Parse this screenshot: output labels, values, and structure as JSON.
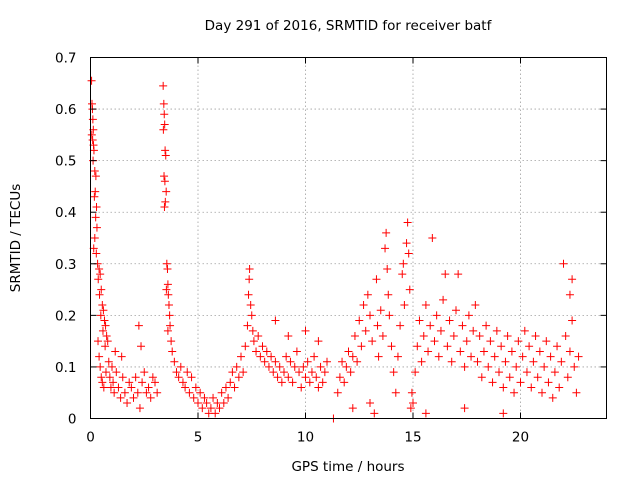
{
  "chart_data": {
    "type": "scatter",
    "title": "Day 291 of 2016, SRMTID for receiver batf",
    "xlabel": "GPS time / hours",
    "ylabel": "SRMTID / TECUs",
    "xlim": [
      0,
      24
    ],
    "ylim": [
      0,
      0.7
    ],
    "x_ticks": [
      0,
      5,
      10,
      15,
      20
    ],
    "y_ticks": [
      0,
      0.1,
      0.2,
      0.3,
      0.4,
      0.5,
      0.6,
      0.7
    ],
    "x_tick_labels": [
      "0",
      "5",
      "10",
      "15",
      "20"
    ],
    "y_tick_labels": [
      "0",
      "0.1",
      "0.2",
      "0.3",
      "0.4",
      "0.5",
      "0.6",
      "0.7"
    ],
    "grid": true,
    "marker": "+",
    "color": "#ff0000",
    "series": [
      {
        "name": "SRMTID",
        "points": [
          [
            0.05,
            0.655
          ],
          [
            0.07,
            0.61
          ],
          [
            0.09,
            0.6
          ],
          [
            0.11,
            0.58
          ],
          [
            0.13,
            0.56
          ],
          [
            0.06,
            0.55
          ],
          [
            0.1,
            0.54
          ],
          [
            0.14,
            0.53
          ],
          [
            0.16,
            0.52
          ],
          [
            0.12,
            0.5
          ],
          [
            0.2,
            0.48
          ],
          [
            0.25,
            0.47
          ],
          [
            0.22,
            0.44
          ],
          [
            0.18,
            0.43
          ],
          [
            0.28,
            0.41
          ],
          [
            0.24,
            0.39
          ],
          [
            0.3,
            0.37
          ],
          [
            0.2,
            0.35
          ],
          [
            0.15,
            0.33
          ],
          [
            0.27,
            0.32
          ],
          [
            0.33,
            0.3
          ],
          [
            0.4,
            0.29
          ],
          [
            0.45,
            0.28
          ],
          [
            0.36,
            0.27
          ],
          [
            0.5,
            0.25
          ],
          [
            0.42,
            0.24
          ],
          [
            0.55,
            0.22
          ],
          [
            0.6,
            0.21
          ],
          [
            0.48,
            0.2
          ],
          [
            0.65,
            0.19
          ],
          [
            0.7,
            0.18
          ],
          [
            0.58,
            0.17
          ],
          [
            0.75,
            0.16
          ],
          [
            0.8,
            0.15
          ],
          [
            0.68,
            0.14
          ],
          [
            0.35,
            0.15
          ],
          [
            0.4,
            0.12
          ],
          [
            0.45,
            0.1
          ],
          [
            0.5,
            0.08
          ],
          [
            0.55,
            0.07
          ],
          [
            0.62,
            0.06
          ],
          [
            0.72,
            0.09
          ],
          [
            0.85,
            0.11
          ],
          [
            0.9,
            0.08
          ],
          [
            0.95,
            0.06
          ],
          [
            1.0,
            0.1
          ],
          [
            1.05,
            0.07
          ],
          [
            1.1,
            0.05
          ],
          [
            1.2,
            0.09
          ],
          [
            1.3,
            0.06
          ],
          [
            1.4,
            0.04
          ],
          [
            1.5,
            0.08
          ],
          [
            1.6,
            0.05
          ],
          [
            1.7,
            0.03
          ],
          [
            1.8,
            0.07
          ],
          [
            1.9,
            0.06
          ],
          [
            2.0,
            0.04
          ],
          [
            2.1,
            0.08
          ],
          [
            2.2,
            0.05
          ],
          [
            2.3,
            0.02
          ],
          [
            2.4,
            0.07
          ],
          [
            2.5,
            0.09
          ],
          [
            2.6,
            0.05
          ],
          [
            2.7,
            0.06
          ],
          [
            2.8,
            0.04
          ],
          [
            2.9,
            0.08
          ],
          [
            3.0,
            0.07
          ],
          [
            3.1,
            0.05
          ],
          [
            2.25,
            0.18
          ],
          [
            2.35,
            0.14
          ],
          [
            1.15,
            0.13
          ],
          [
            1.45,
            0.12
          ],
          [
            3.38,
            0.645
          ],
          [
            3.41,
            0.61
          ],
          [
            3.43,
            0.59
          ],
          [
            3.45,
            0.57
          ],
          [
            3.39,
            0.56
          ],
          [
            3.47,
            0.52
          ],
          [
            3.5,
            0.51
          ],
          [
            3.42,
            0.47
          ],
          [
            3.46,
            0.46
          ],
          [
            3.52,
            0.44
          ],
          [
            3.48,
            0.42
          ],
          [
            3.44,
            0.41
          ],
          [
            3.55,
            0.3
          ],
          [
            3.58,
            0.29
          ],
          [
            3.6,
            0.26
          ],
          [
            3.53,
            0.25
          ],
          [
            3.62,
            0.24
          ],
          [
            3.65,
            0.22
          ],
          [
            3.68,
            0.2
          ],
          [
            3.7,
            0.18
          ],
          [
            3.6,
            0.17
          ],
          [
            3.75,
            0.15
          ],
          [
            3.8,
            0.13
          ],
          [
            3.9,
            0.11
          ],
          [
            4.0,
            0.09
          ],
          [
            4.1,
            0.08
          ],
          [
            4.2,
            0.1
          ],
          [
            4.3,
            0.07
          ],
          [
            4.4,
            0.06
          ],
          [
            4.5,
            0.09
          ],
          [
            4.6,
            0.05
          ],
          [
            4.7,
            0.08
          ],
          [
            4.8,
            0.04
          ],
          [
            4.9,
            0.06
          ],
          [
            5.0,
            0.03
          ],
          [
            5.1,
            0.05
          ],
          [
            5.2,
            0.02
          ],
          [
            5.3,
            0.04
          ],
          [
            5.4,
            0.03
          ],
          [
            5.5,
            0.01
          ],
          [
            5.6,
            0.02
          ],
          [
            5.7,
            0.04
          ],
          [
            5.8,
            0.01
          ],
          [
            5.9,
            0.03
          ],
          [
            6.0,
            0.02
          ],
          [
            6.1,
            0.05
          ],
          [
            6.2,
            0.03
          ],
          [
            6.3,
            0.06
          ],
          [
            6.4,
            0.04
          ],
          [
            6.5,
            0.07
          ],
          [
            6.6,
            0.09
          ],
          [
            6.7,
            0.06
          ],
          [
            6.8,
            0.1
          ],
          [
            6.9,
            0.08
          ],
          [
            7.0,
            0.12
          ],
          [
            7.1,
            0.09
          ],
          [
            7.2,
            0.14
          ],
          [
            7.3,
            0.18
          ],
          [
            7.35,
            0.24
          ],
          [
            7.38,
            0.27
          ],
          [
            7.4,
            0.29
          ],
          [
            7.45,
            0.22
          ],
          [
            7.5,
            0.2
          ],
          [
            7.55,
            0.17
          ],
          [
            7.6,
            0.15
          ],
          [
            7.7,
            0.13
          ],
          [
            7.8,
            0.16
          ],
          [
            7.9,
            0.12
          ],
          [
            8.0,
            0.14
          ],
          [
            8.1,
            0.11
          ],
          [
            8.2,
            0.13
          ],
          [
            8.3,
            0.1
          ],
          [
            8.4,
            0.12
          ],
          [
            8.5,
            0.09
          ],
          [
            8.6,
            0.11
          ],
          [
            8.7,
            0.08
          ],
          [
            8.8,
            0.1
          ],
          [
            8.9,
            0.07
          ],
          [
            9.0,
            0.09
          ],
          [
            9.1,
            0.12
          ],
          [
            9.2,
            0.08
          ],
          [
            9.3,
            0.11
          ],
          [
            9.4,
            0.07
          ],
          [
            9.5,
            0.1
          ],
          [
            9.6,
            0.13
          ],
          [
            9.7,
            0.09
          ],
          [
            9.8,
            0.06
          ],
          [
            9.9,
            0.1
          ],
          [
            10.0,
            0.08
          ],
          [
            10.1,
            0.11
          ],
          [
            10.2,
            0.07
          ],
          [
            10.3,
            0.09
          ],
          [
            10.4,
            0.12
          ],
          [
            10.5,
            0.08
          ],
          [
            10.6,
            0.06
          ],
          [
            10.7,
            0.1
          ],
          [
            10.8,
            0.07
          ],
          [
            10.9,
            0.09
          ],
          [
            11.0,
            0.11
          ],
          [
            8.6,
            0.19
          ],
          [
            9.2,
            0.16
          ],
          [
            10.0,
            0.17
          ],
          [
            10.6,
            0.15
          ],
          [
            11.3,
            0.0
          ],
          [
            11.5,
            0.05
          ],
          [
            11.6,
            0.08
          ],
          [
            11.7,
            0.11
          ],
          [
            11.8,
            0.07
          ],
          [
            11.9,
            0.1
          ],
          [
            12.0,
            0.13
          ],
          [
            12.1,
            0.09
          ],
          [
            12.2,
            0.12
          ],
          [
            12.3,
            0.16
          ],
          [
            12.4,
            0.11
          ],
          [
            12.5,
            0.19
          ],
          [
            12.6,
            0.14
          ],
          [
            12.7,
            0.22
          ],
          [
            12.8,
            0.17
          ],
          [
            12.9,
            0.24
          ],
          [
            13.0,
            0.2
          ],
          [
            13.1,
            0.15
          ],
          [
            13.2,
            0.01
          ],
          [
            13.3,
            0.27
          ],
          [
            13.35,
            0.18
          ],
          [
            13.4,
            0.12
          ],
          [
            13.5,
            0.21
          ],
          [
            13.6,
            0.16
          ],
          [
            13.7,
            0.33
          ],
          [
            13.75,
            0.36
          ],
          [
            13.8,
            0.29
          ],
          [
            13.85,
            0.24
          ],
          [
            13.9,
            0.2
          ],
          [
            14.0,
            0.14
          ],
          [
            14.1,
            0.09
          ],
          [
            14.2,
            0.05
          ],
          [
            14.3,
            0.12
          ],
          [
            14.4,
            0.18
          ],
          [
            14.5,
            0.28
          ],
          [
            14.55,
            0.3
          ],
          [
            14.6,
            0.22
          ],
          [
            14.7,
            0.34
          ],
          [
            14.75,
            0.38
          ],
          [
            14.8,
            0.32
          ],
          [
            14.85,
            0.25
          ],
          [
            14.9,
            0.02
          ],
          [
            14.95,
            0.05
          ],
          [
            15.0,
            0.03
          ],
          [
            15.1,
            0.09
          ],
          [
            15.2,
            0.14
          ],
          [
            15.3,
            0.19
          ],
          [
            15.4,
            0.11
          ],
          [
            15.5,
            0.16
          ],
          [
            15.6,
            0.22
          ],
          [
            15.7,
            0.13
          ],
          [
            15.8,
            0.18
          ],
          [
            15.9,
            0.35
          ],
          [
            16.0,
            0.15
          ],
          [
            16.1,
            0.2
          ],
          [
            16.2,
            0.12
          ],
          [
            16.3,
            0.17
          ],
          [
            16.4,
            0.23
          ],
          [
            16.5,
            0.28
          ],
          [
            16.6,
            0.14
          ],
          [
            16.7,
            0.19
          ],
          [
            16.8,
            0.11
          ],
          [
            16.9,
            0.16
          ],
          [
            17.0,
            0.21
          ],
          [
            17.1,
            0.28
          ],
          [
            17.2,
            0.13
          ],
          [
            17.3,
            0.18
          ],
          [
            17.4,
            0.1
          ],
          [
            17.5,
            0.15
          ],
          [
            17.6,
            0.2
          ],
          [
            17.7,
            0.12
          ],
          [
            17.8,
            0.17
          ],
          [
            17.9,
            0.22
          ],
          [
            18.0,
            0.11
          ],
          [
            18.1,
            0.16
          ],
          [
            18.2,
            0.08
          ],
          [
            18.3,
            0.13
          ],
          [
            18.4,
            0.18
          ],
          [
            18.5,
            0.1
          ],
          [
            18.6,
            0.15
          ],
          [
            18.7,
            0.07
          ],
          [
            18.8,
            0.12
          ],
          [
            18.9,
            0.17
          ],
          [
            19.0,
            0.09
          ],
          [
            19.1,
            0.14
          ],
          [
            19.2,
            0.06
          ],
          [
            19.3,
            0.11
          ],
          [
            19.4,
            0.16
          ],
          [
            19.5,
            0.08
          ],
          [
            19.6,
            0.13
          ],
          [
            19.7,
            0.05
          ],
          [
            19.8,
            0.1
          ],
          [
            19.9,
            0.15
          ],
          [
            20.0,
            0.07
          ],
          [
            20.1,
            0.12
          ],
          [
            20.2,
            0.17
          ],
          [
            20.3,
            0.09
          ],
          [
            20.4,
            0.14
          ],
          [
            20.5,
            0.06
          ],
          [
            20.6,
            0.11
          ],
          [
            20.7,
            0.16
          ],
          [
            20.8,
            0.08
          ],
          [
            20.9,
            0.13
          ],
          [
            21.0,
            0.05
          ],
          [
            21.1,
            0.1
          ],
          [
            21.2,
            0.15
          ],
          [
            21.3,
            0.07
          ],
          [
            21.4,
            0.12
          ],
          [
            21.5,
            0.04
          ],
          [
            21.6,
            0.09
          ],
          [
            21.7,
            0.14
          ],
          [
            21.8,
            0.06
          ],
          [
            21.9,
            0.11
          ],
          [
            22.0,
            0.3
          ],
          [
            22.1,
            0.16
          ],
          [
            22.2,
            0.08
          ],
          [
            22.3,
            0.13
          ],
          [
            22.4,
            0.19
          ],
          [
            22.5,
            0.1
          ],
          [
            22.6,
            0.05
          ],
          [
            22.7,
            0.12
          ],
          [
            22.4,
            0.27
          ],
          [
            22.3,
            0.24
          ],
          [
            13.0,
            0.03
          ],
          [
            12.2,
            0.02
          ],
          [
            15.6,
            0.01
          ],
          [
            17.4,
            0.02
          ],
          [
            19.2,
            0.01
          ]
        ]
      }
    ]
  }
}
